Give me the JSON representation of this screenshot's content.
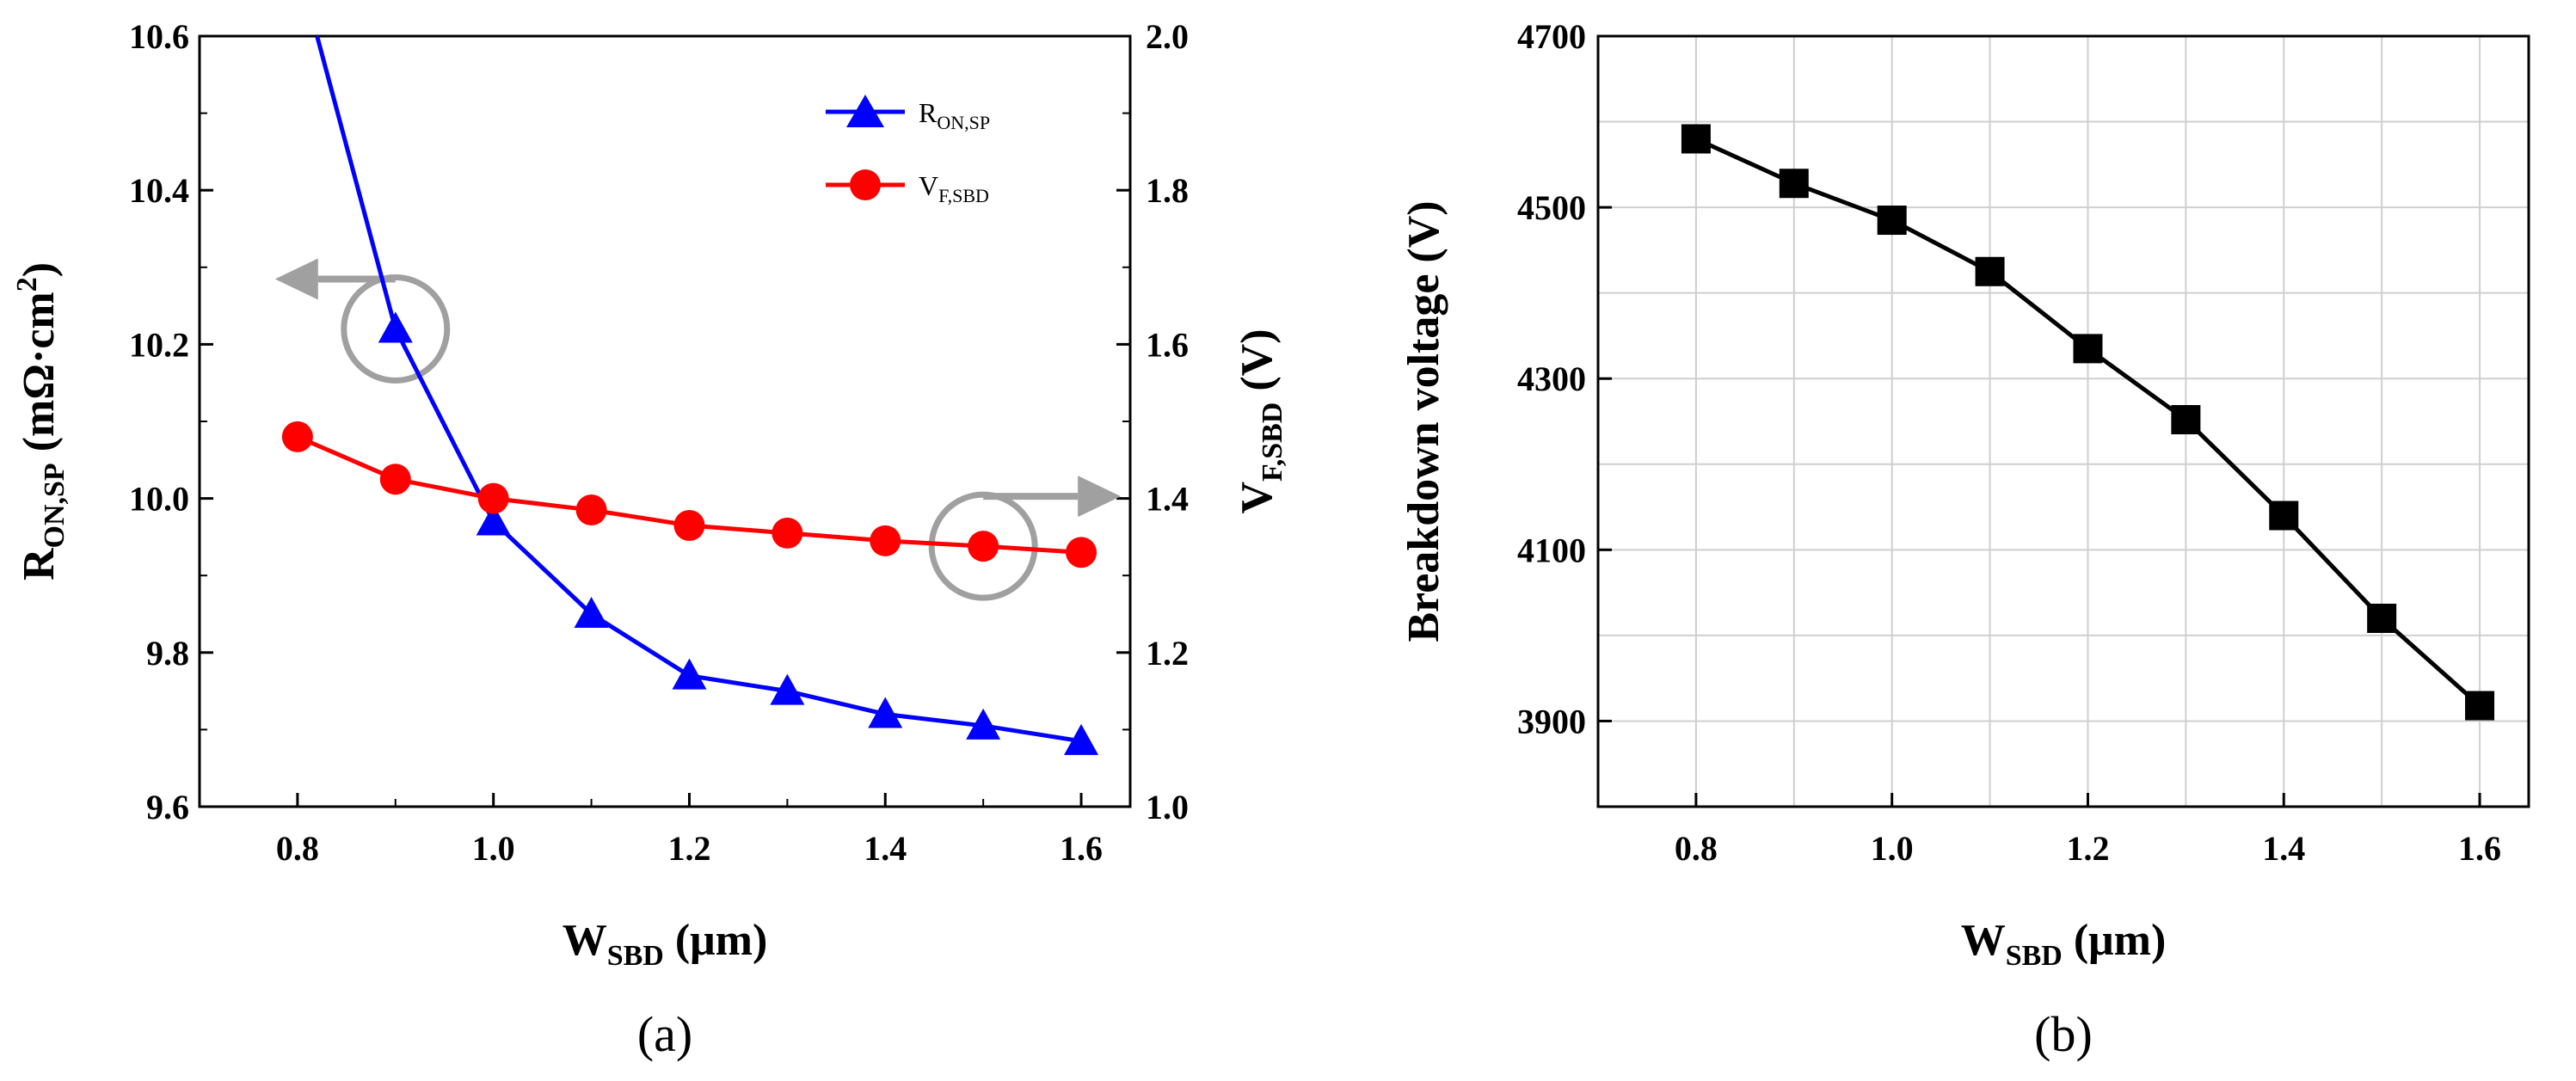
{
  "figure": {
    "panel_a_label": "(a)",
    "panel_b_label": "(b)"
  },
  "chart_data": [
    {
      "type": "line",
      "panel": "(a)",
      "title": "",
      "xlabel": "W",
      "xlabel_sub": "SBD",
      "xlabel_unit": " (μm)",
      "ylabel_left": "R",
      "ylabel_left_sub": "ON,SP",
      "ylabel_left_unit": " (mΩ·cm",
      "ylabel_left_sup": "2",
      "ylabel_left_close": ")",
      "ylabel_right": "V",
      "ylabel_right_sub": "F,SBD",
      "ylabel_right_unit": " (V)",
      "xlim": [
        0.7,
        1.65
      ],
      "ylim_left": [
        9.6,
        10.6
      ],
      "ylim_right": [
        1.0,
        2.0
      ],
      "xticks": [
        "0.8",
        "1.0",
        "1.2",
        "1.4",
        "1.6"
      ],
      "xtick_values": [
        0.8,
        1.0,
        1.2,
        1.4,
        1.6
      ],
      "yticks_left": [
        "9.6",
        "9.8",
        "10.0",
        "10.2",
        "10.4",
        "10.6"
      ],
      "ytick_values_left": [
        9.6,
        9.8,
        10.0,
        10.2,
        10.4,
        10.6
      ],
      "yticks_right": [
        "1.0",
        "1.2",
        "1.4",
        "1.6",
        "1.8",
        "2.0"
      ],
      "ytick_values_right": [
        1.0,
        1.2,
        1.4,
        1.6,
        1.8,
        2.0
      ],
      "legend_position": "top-right",
      "series": [
        {
          "name": "R",
          "name_sub": "ON,SP",
          "axis": "left",
          "color": "#0000ff",
          "marker": "triangle",
          "x": [
            0.9,
            1.0,
            1.1,
            1.2,
            1.3,
            1.4,
            1.5,
            1.6
          ],
          "values": [
            10.22,
            9.97,
            9.85,
            9.77,
            9.75,
            9.72,
            9.705,
            9.685
          ],
          "line_start": [
            0.82,
            10.6
          ]
        },
        {
          "name": "V",
          "name_sub": "F,SBD",
          "axis": "right",
          "color": "#ff0000",
          "marker": "circle",
          "x": [
            0.8,
            0.9,
            1.0,
            1.1,
            1.2,
            1.3,
            1.4,
            1.5,
            1.6
          ],
          "values": [
            1.48,
            1.425,
            1.4,
            1.385,
            1.365,
            1.355,
            1.345,
            1.338,
            1.33
          ]
        }
      ],
      "annotations": [
        {
          "type": "circle-arrow",
          "direction": "left",
          "target_series": "R",
          "x": 0.9,
          "y": 10.22
        },
        {
          "type": "circle-arrow",
          "direction": "right",
          "target_series": "V",
          "x": 1.5,
          "y": 1.338
        }
      ],
      "annotation_color": "#a0a0a0"
    },
    {
      "type": "line",
      "panel": "(b)",
      "title": "",
      "xlabel": "W",
      "xlabel_sub": "SBD",
      "xlabel_unit": " (μm)",
      "ylabel": "Breakdown voltage (V)",
      "xlim": [
        0.7,
        1.65
      ],
      "ylim": [
        3800,
        4700
      ],
      "xticks": [
        "0.8",
        "1.0",
        "1.2",
        "1.4",
        "1.6"
      ],
      "xtick_values": [
        0.8,
        1.0,
        1.2,
        1.4,
        1.6
      ],
      "yticks": [
        "3900",
        "4100",
        "4300",
        "4500",
        "4700"
      ],
      "ytick_values": [
        3900,
        4100,
        4300,
        4500,
        4700
      ],
      "grid": true,
      "series": [
        {
          "name": "Breakdown voltage",
          "color": "#000000",
          "marker": "square",
          "x": [
            0.8,
            0.9,
            1.0,
            1.1,
            1.2,
            1.3,
            1.4,
            1.5,
            1.6
          ],
          "values": [
            4580,
            4528,
            4485,
            4425,
            4335,
            4252,
            4140,
            4020,
            3918
          ]
        }
      ]
    }
  ]
}
